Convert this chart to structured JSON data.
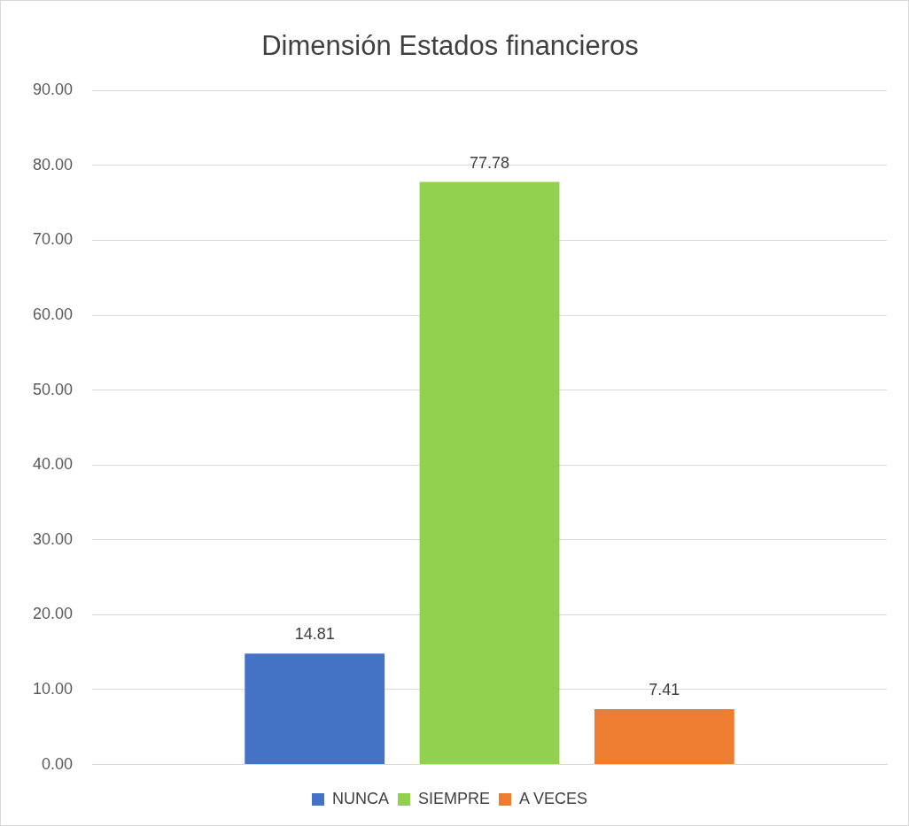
{
  "chart_data": {
    "type": "bar",
    "title": "Dimensión Estados financieros",
    "categories": [
      null
    ],
    "series": [
      {
        "name": "NUNCA",
        "color": "#4472c4",
        "values": [
          14.81
        ]
      },
      {
        "name": "SIEMPRE",
        "color": "#92d050",
        "values": [
          77.78
        ]
      },
      {
        "name": "A VECES",
        "color": "#ed7d31",
        "values": [
          7.41
        ]
      }
    ],
    "ylim": [
      0,
      90
    ],
    "yticks": [
      {
        "value": 0,
        "label": "0.00"
      },
      {
        "value": 10,
        "label": "10.00"
      },
      {
        "value": 20,
        "label": "20.00"
      },
      {
        "value": 30,
        "label": "30.00"
      },
      {
        "value": 40,
        "label": "40.00"
      },
      {
        "value": 50,
        "label": "50.00"
      },
      {
        "value": 60,
        "label": "60.00"
      },
      {
        "value": 70,
        "label": "70.00"
      },
      {
        "value": 80,
        "label": "80.00"
      },
      {
        "value": 90,
        "label": "90.00"
      }
    ],
    "grid": "y",
    "legend": "bottom",
    "data_labels": true
  }
}
